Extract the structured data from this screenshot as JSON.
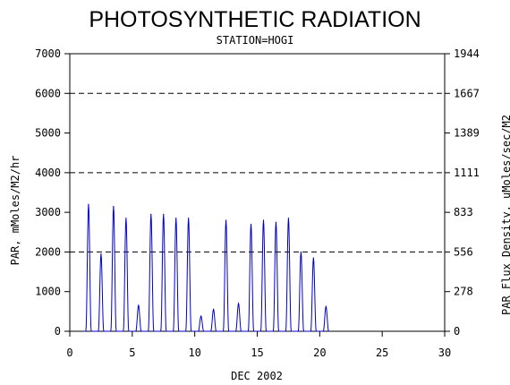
{
  "chart_data": {
    "type": "line",
    "title": "PHOTOSYNTHETIC RADIATION",
    "subtitle": "STATION=HOGI",
    "xlabel": "DEC 2002",
    "ylabel_left": "PAR, mMoles/M2/hr",
    "ylabel_right": "PAR Flux Density, uMoles/sec/M2",
    "xlim": [
      0,
      30
    ],
    "ylim": [
      0,
      7000
    ],
    "x_ticks": [
      "0",
      "5",
      "10",
      "15",
      "20",
      "25",
      "30"
    ],
    "y_ticks_left": [
      "0",
      "1000",
      "2000",
      "3000",
      "4000",
      "5000",
      "6000",
      "7000"
    ],
    "y_ticks_right": [
      "0",
      "278",
      "556",
      "833",
      "1111",
      "1389",
      "1667",
      "1944"
    ],
    "reference_lines": [
      2000,
      4000,
      6000
    ],
    "grid": false,
    "series": [
      {
        "color": "#0000cc",
        "daily_peaks": [
          {
            "x": 1.5,
            "y": 3200
          },
          {
            "x": 2.5,
            "y": 1950
          },
          {
            "x": 3.5,
            "y": 3150
          },
          {
            "x": 4.5,
            "y": 2850
          },
          {
            "x": 5.5,
            "y": 650
          },
          {
            "x": 6.5,
            "y": 2950
          },
          {
            "x": 7.5,
            "y": 2950
          },
          {
            "x": 8.5,
            "y": 2850
          },
          {
            "x": 9.5,
            "y": 2850
          },
          {
            "x": 10.5,
            "y": 380
          },
          {
            "x": 11.5,
            "y": 550
          },
          {
            "x": 12.5,
            "y": 2800
          },
          {
            "x": 13.5,
            "y": 700
          },
          {
            "x": 14.5,
            "y": 2700
          },
          {
            "x": 15.5,
            "y": 2800
          },
          {
            "x": 16.5,
            "y": 2750
          },
          {
            "x": 17.5,
            "y": 2850
          },
          {
            "x": 18.5,
            "y": 2000
          },
          {
            "x": 19.5,
            "y": 1850
          },
          {
            "x": 20.5,
            "y": 620
          }
        ]
      }
    ]
  }
}
